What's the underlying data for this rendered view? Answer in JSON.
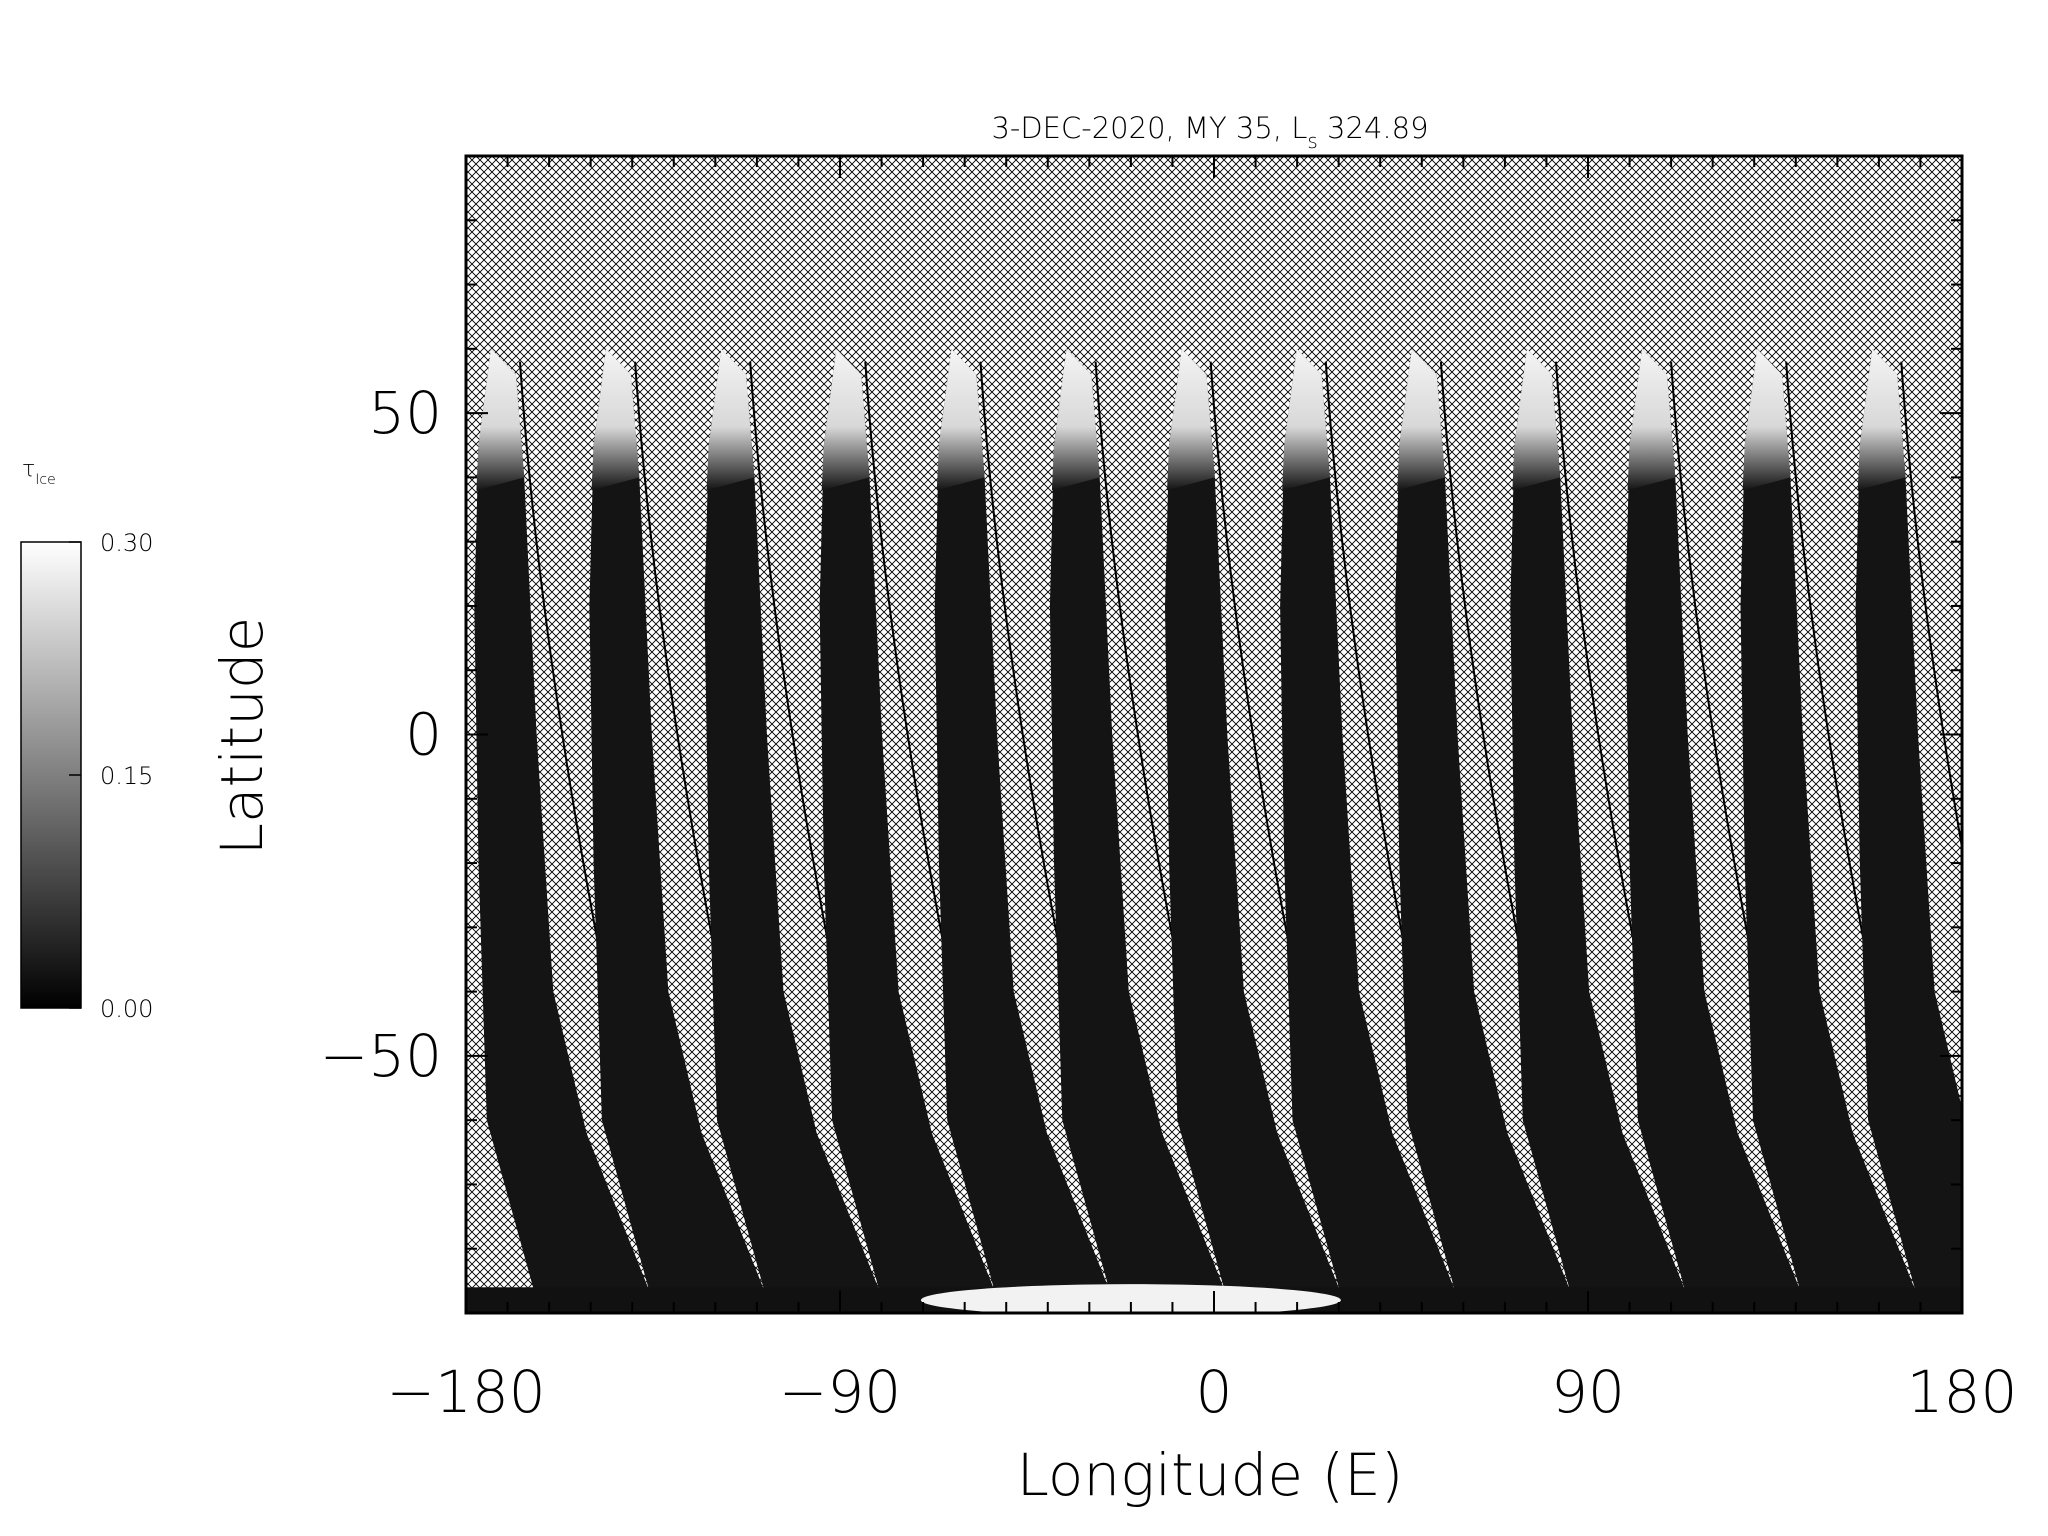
{
  "chart_data": {
    "type": "heatmap",
    "title": "3-DEC-2020, MY 35,  L",
    "title_subscript": "s",
    "title_suffix": " 324.89",
    "xlabel": "Longitude (E)",
    "ylabel": "Latitude",
    "xlim": [
      -180,
      180
    ],
    "ylim": [
      -90,
      90
    ],
    "x_ticks": [
      -180,
      -90,
      0,
      90,
      180
    ],
    "x_tick_labels": [
      "−180",
      "−90",
      "0",
      "90",
      "180"
    ],
    "y_ticks": [
      -50,
      0,
      50
    ],
    "y_tick_labels": [
      "−50",
      "0",
      "50"
    ],
    "colorbar": {
      "label": "τ",
      "label_subscript": "Ice",
      "range": [
        0.0,
        0.3
      ],
      "ticks": [
        0.0,
        0.15,
        0.3
      ],
      "tick_labels": [
        "0.00",
        "0.15",
        "0.30"
      ],
      "colormap": "grayscale"
    },
    "missing_data_pattern": "crosshatch",
    "swaths": {
      "count": 13,
      "spacing_deg": 27.7,
      "first_center_lon": -171,
      "north_edge_lat": 60,
      "south_edge_lat": -88
    },
    "north_ice_band_lat": [
      40,
      60
    ],
    "south_polar_band_lat": [
      -90,
      -86
    ]
  },
  "colors": {
    "background": "#ffffff",
    "swath_fill": "#141414",
    "ice_high": "#f5f5f5",
    "hatch": "#000000"
  }
}
